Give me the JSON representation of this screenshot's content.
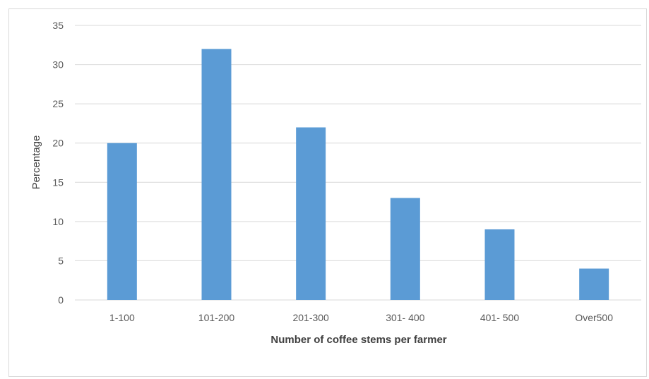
{
  "chart_data": {
    "type": "bar",
    "title": "",
    "xlabel": "Number of coffee stems per farmer",
    "ylabel": "Percentage",
    "categories": [
      "1-100",
      "101-200",
      "201-300",
      "301- 400",
      "401- 500",
      "Over500"
    ],
    "values": [
      20,
      32,
      22,
      13,
      9,
      4
    ],
    "ylim": [
      0,
      35
    ],
    "yticks": [
      0,
      5,
      10,
      15,
      20,
      25,
      30,
      35
    ],
    "grid": true,
    "bar_color": "#5b9bd5",
    "grid_color": "#d9d9d9"
  }
}
